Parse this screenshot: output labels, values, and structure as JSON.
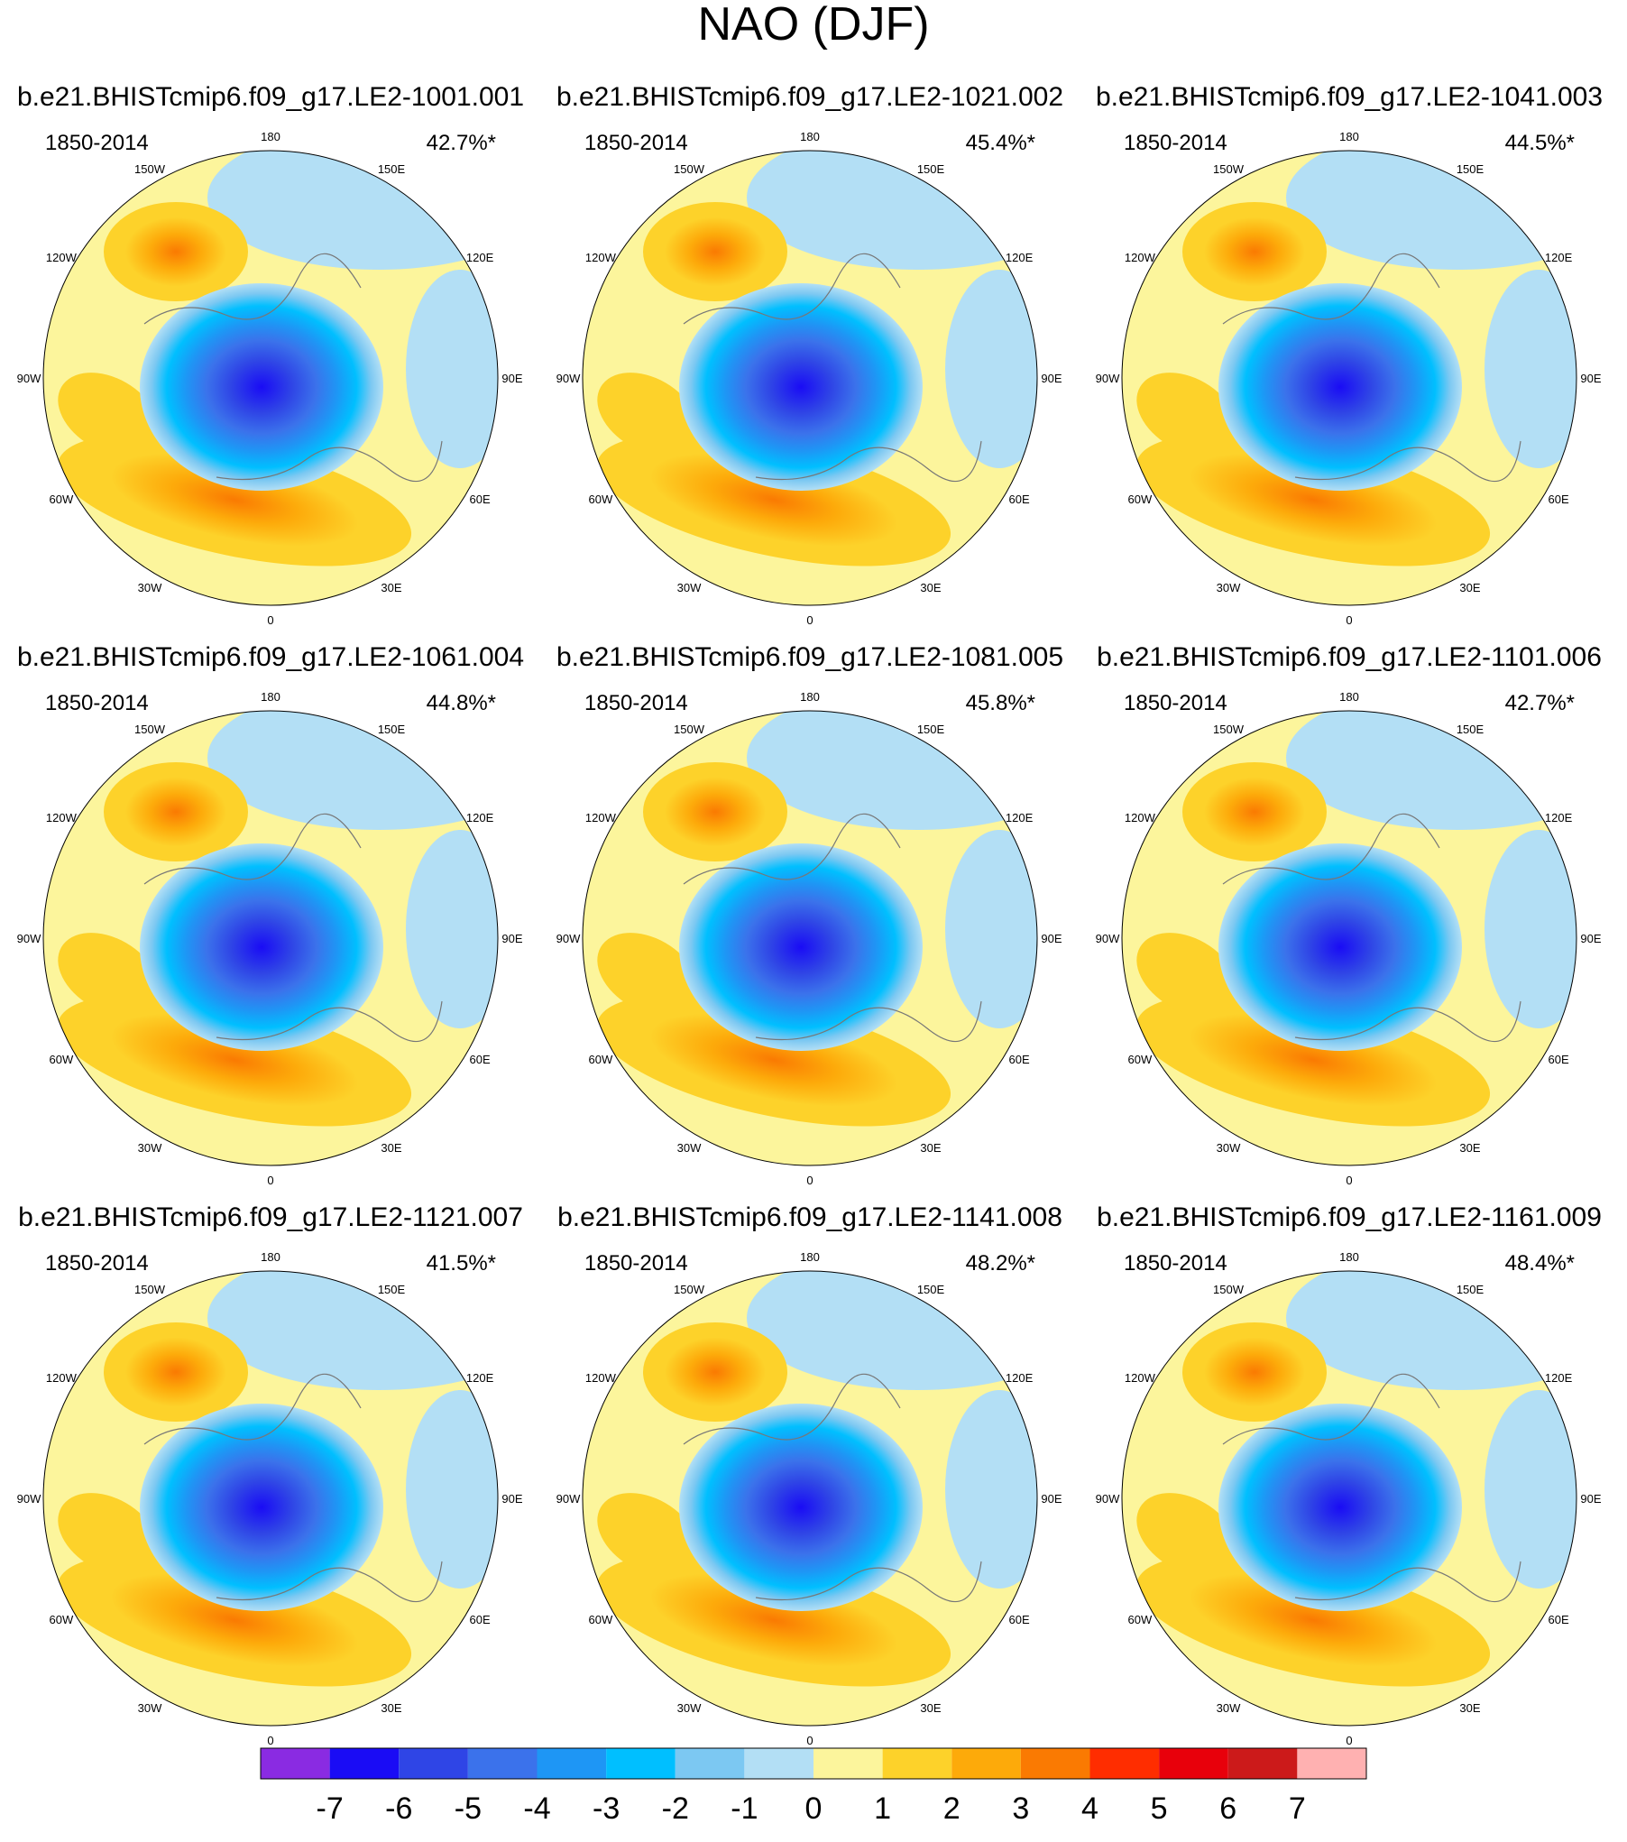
{
  "chart_data": {
    "type": "heatmap",
    "title": "NAO (DJF)",
    "projection": "polar stereographic, Northern Hemisphere",
    "lon_labels": [
      "180",
      "150W",
      "150E",
      "120W",
      "120E",
      "90W",
      "90E",
      "60W",
      "60E",
      "30W",
      "30E",
      "0"
    ],
    "panels": [
      {
        "member": "b.e21.BHISTcmip6.f09_g17.LE2-1001.001",
        "period": "1850-2014",
        "variance": "42.7%*"
      },
      {
        "member": "b.e21.BHISTcmip6.f09_g17.LE2-1021.002",
        "period": "1850-2014",
        "variance": "45.4%*"
      },
      {
        "member": "b.e21.BHISTcmip6.f09_g17.LE2-1041.003",
        "period": "1850-2014",
        "variance": "44.5%*"
      },
      {
        "member": "b.e21.BHISTcmip6.f09_g17.LE2-1061.004",
        "period": "1850-2014",
        "variance": "44.8%*"
      },
      {
        "member": "b.e21.BHISTcmip6.f09_g17.LE2-1081.005",
        "period": "1850-2014",
        "variance": "45.8%*"
      },
      {
        "member": "b.e21.BHISTcmip6.f09_g17.LE2-1101.006",
        "period": "1850-2014",
        "variance": "42.7%*"
      },
      {
        "member": "b.e21.BHISTcmip6.f09_g17.LE2-1121.007",
        "period": "1850-2014",
        "variance": "41.5%*"
      },
      {
        "member": "b.e21.BHISTcmip6.f09_g17.LE2-1141.008",
        "period": "1850-2014",
        "variance": "48.2%*"
      },
      {
        "member": "b.e21.BHISTcmip6.f09_g17.LE2-1161.009",
        "period": "1850-2014",
        "variance": "48.4%*"
      }
    ],
    "colorbar": {
      "labels": [
        "-7",
        "-6",
        "-5",
        "-4",
        "-3",
        "-2",
        "-1",
        "0",
        "1",
        "2",
        "3",
        "4",
        "5",
        "6",
        "7"
      ],
      "colors": [
        "#8a2be2",
        "#1a0cf5",
        "#2f45e6",
        "#3b72eb",
        "#1e96f5",
        "#00bfff",
        "#7cc8f2",
        "#b3dff5",
        "#fcf59c",
        "#fdd22a",
        "#fdaa0a",
        "#fa7a02",
        "#ff2d00",
        "#e8000b",
        "#cc1a1a",
        "#ffb1b1"
      ]
    }
  }
}
